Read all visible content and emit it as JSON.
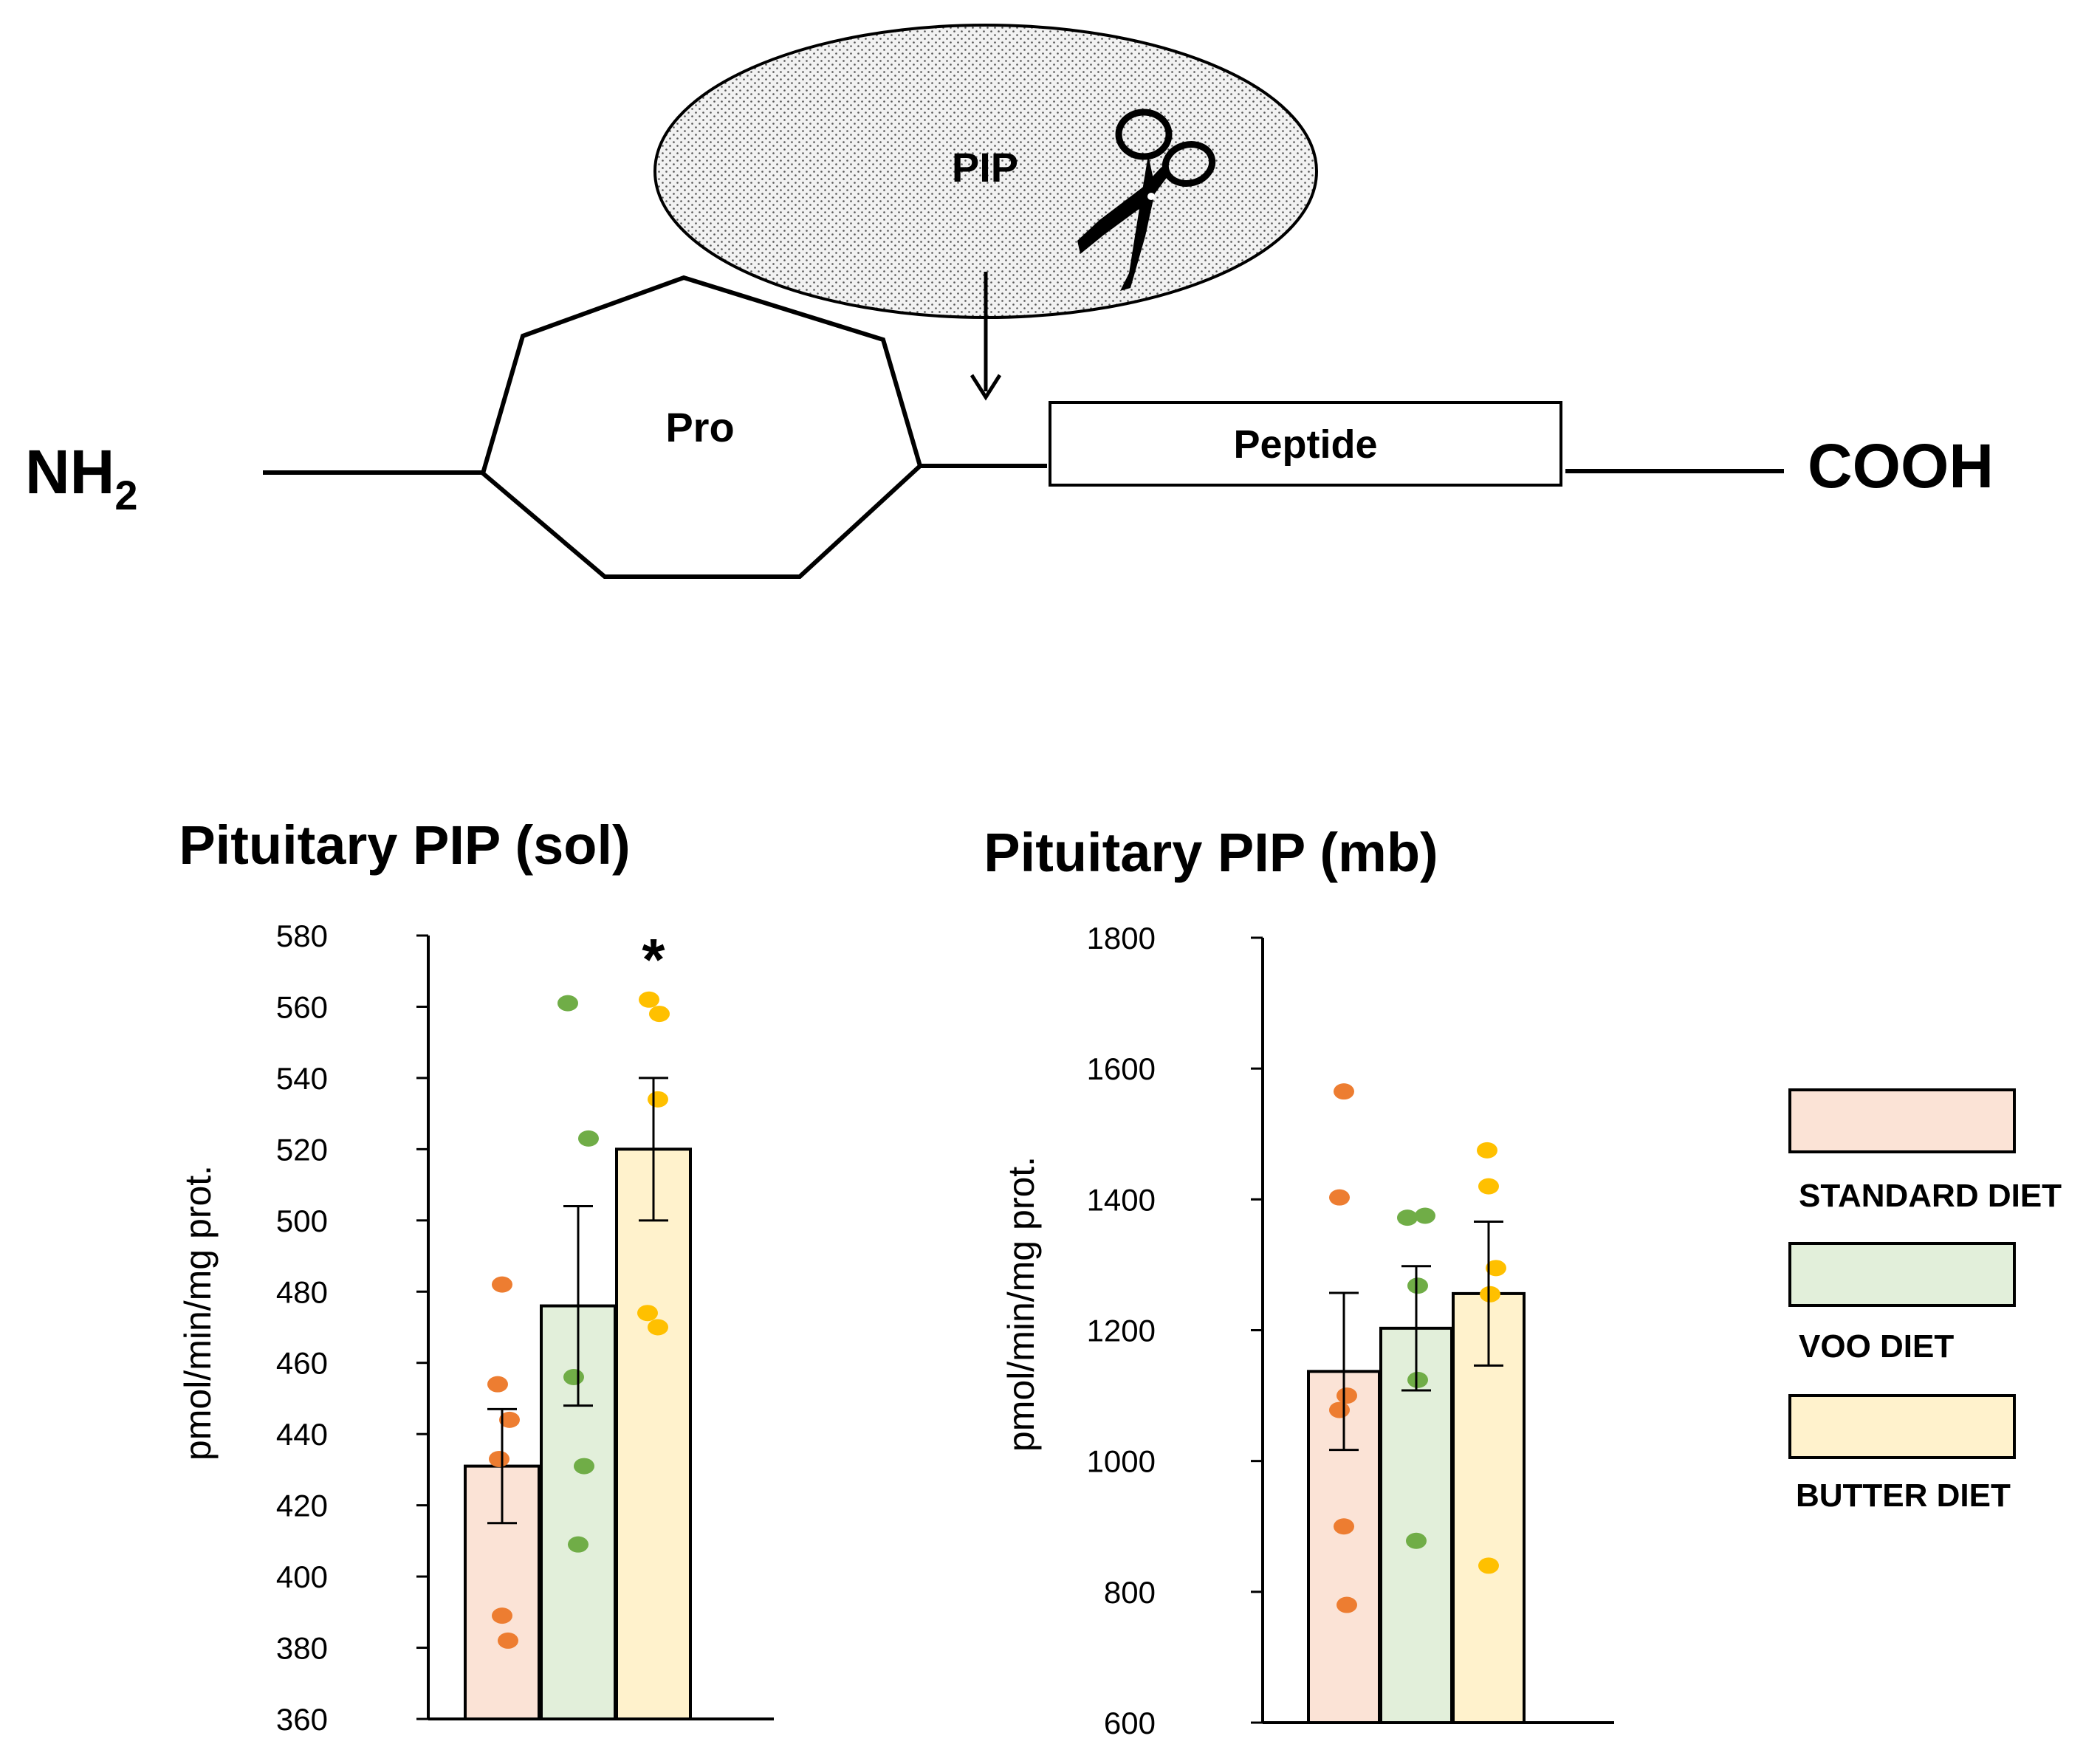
{
  "diagram": {
    "enzyme_label": "PIP",
    "pro_label": "Pro",
    "peptide_label": "Peptide",
    "nterm_main": "NH",
    "nterm_sub": "2",
    "cterm_label": "COOH",
    "scissors_icon": "scissors-icon"
  },
  "legend": {
    "items": [
      {
        "label": "STANDARD DIET",
        "fill": "#fbe3d6",
        "stroke": "#000000"
      },
      {
        "label": "VOO DIET",
        "fill": "#e2efda",
        "stroke": "#000000"
      },
      {
        "label": "BUTTER DIET",
        "fill": "#fff2cc",
        "stroke": "#000000"
      }
    ]
  },
  "chart_data": [
    {
      "type": "bar",
      "title": "Pituitary PIP (sol)",
      "ylabel": "pmol/min/mg prot.",
      "xlabel": "",
      "ylim": [
        360,
        580
      ],
      "yticks": [
        360,
        380,
        400,
        420,
        440,
        460,
        480,
        500,
        520,
        540,
        560,
        580
      ],
      "categories": [
        "STANDARD DIET",
        "VOO DIET",
        "BUTTER DIET"
      ],
      "values": [
        431,
        476,
        520
      ],
      "errors": [
        16,
        28,
        20
      ],
      "significance": [
        "",
        "",
        "*"
      ],
      "bar_fill": [
        "#fbe3d6",
        "#e2efda",
        "#fff2cc"
      ],
      "dot_color": [
        "#ed7d31",
        "#70ad47",
        "#ffc000"
      ],
      "points": [
        [
          482,
          454,
          444,
          433,
          389,
          382
        ],
        [
          561,
          523,
          456,
          431,
          409
        ],
        [
          562,
          558,
          534,
          474,
          470
        ]
      ]
    },
    {
      "type": "bar",
      "title": "Pituitary PIP (mb)",
      "ylabel": "pmol/min/mg prot.",
      "xlabel": "",
      "ylim": [
        600,
        1800
      ],
      "yticks": [
        600,
        800,
        1000,
        1200,
        1400,
        1600,
        1800
      ],
      "categories": [
        "STANDARD DIET",
        "VOO DIET",
        "BUTTER DIET"
      ],
      "values": [
        1137,
        1203,
        1256
      ],
      "errors": [
        120,
        95,
        110
      ],
      "significance": [
        "",
        "",
        ""
      ],
      "bar_fill": [
        "#fbe3d6",
        "#e2efda",
        "#fff2cc"
      ],
      "dot_color": [
        "#ed7d31",
        "#70ad47",
        "#ffc000"
      ],
      "points": [
        [
          1565,
          1403,
          1100,
          1078,
          900,
          780
        ],
        [
          1372,
          1375,
          1268,
          1124,
          878
        ],
        [
          1475,
          1420,
          1295,
          1255,
          840
        ]
      ]
    }
  ]
}
